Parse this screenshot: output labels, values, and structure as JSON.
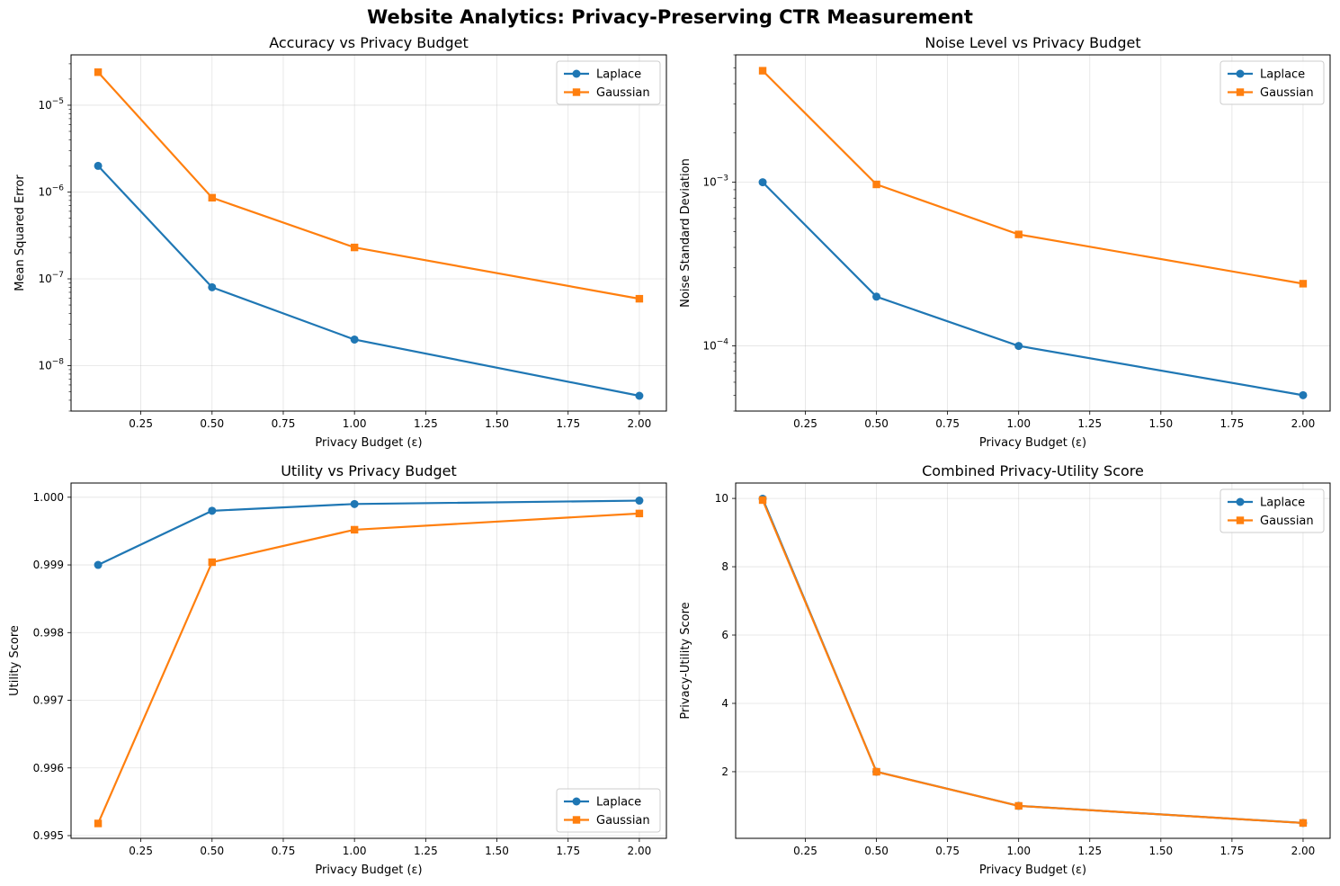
{
  "suptitle": "Website Analytics: Privacy-Preserving CTR Measurement",
  "chart_data": [
    {
      "type": "line",
      "title": "Accuracy vs Privacy Budget",
      "xlabel": "Privacy Budget (ε)",
      "ylabel": "Mean Squared Error",
      "yscale": "log",
      "x": [
        0.1,
        0.5,
        1.0,
        2.0
      ],
      "xlim": [
        0.005,
        2.095
      ],
      "ylim": [
        3e-09,
        3.8e-05
      ],
      "xticks": [
        "0.25",
        "0.50",
        "0.75",
        "1.00",
        "1.25",
        "1.50",
        "1.75",
        "2.00"
      ],
      "yticks": [
        {
          "base": "10",
          "exp": "−8",
          "value": 1e-08
        },
        {
          "base": "10",
          "exp": "−7",
          "value": 1e-07
        },
        {
          "base": "10",
          "exp": "−6",
          "value": 1e-06
        },
        {
          "base": "10",
          "exp": "−5",
          "value": 1e-05
        }
      ],
      "grid": true,
      "legend_loc": "upper right",
      "series": [
        {
          "name": "Laplace",
          "color": "#1f77b4",
          "marker": "circle",
          "values": [
            2e-06,
            8e-08,
            2e-08,
            4.5e-09
          ]
        },
        {
          "name": "Gaussian",
          "color": "#ff7f0e",
          "marker": "square",
          "values": [
            2.4e-05,
            8.6e-07,
            2.3e-07,
            5.9e-08
          ]
        }
      ]
    },
    {
      "type": "line",
      "title": "Noise Level vs Privacy Budget",
      "xlabel": "Privacy Budget (ε)",
      "ylabel": "Noise Standard Deviation",
      "yscale": "log",
      "x": [
        0.1,
        0.5,
        1.0,
        2.0
      ],
      "xlim": [
        0.005,
        2.095
      ],
      "ylim": [
        4e-05,
        0.006
      ],
      "xticks": [
        "0.25",
        "0.50",
        "0.75",
        "1.00",
        "1.25",
        "1.50",
        "1.75",
        "2.00"
      ],
      "yticks": [
        {
          "base": "10",
          "exp": "−4",
          "value": 0.0001
        },
        {
          "base": "10",
          "exp": "−3",
          "value": 0.001
        }
      ],
      "grid": true,
      "legend_loc": "upper right",
      "series": [
        {
          "name": "Laplace",
          "color": "#1f77b4",
          "marker": "circle",
          "values": [
            0.001,
            0.0002,
            0.0001,
            5e-05
          ]
        },
        {
          "name": "Gaussian",
          "color": "#ff7f0e",
          "marker": "square",
          "values": [
            0.0048,
            0.00097,
            0.00048,
            0.00024
          ]
        }
      ]
    },
    {
      "type": "line",
      "title": "Utility vs Privacy Budget",
      "xlabel": "Privacy Budget (ε)",
      "ylabel": "Utility Score",
      "yscale": "linear",
      "x": [
        0.1,
        0.5,
        1.0,
        2.0
      ],
      "xlim": [
        0.005,
        2.095
      ],
      "ylim": [
        0.99496,
        1.00021
      ],
      "xticks": [
        "0.25",
        "0.50",
        "0.75",
        "1.00",
        "1.25",
        "1.50",
        "1.75",
        "2.00"
      ],
      "yticks": [
        "0.995",
        "0.996",
        "0.997",
        "0.998",
        "0.999",
        "1.000"
      ],
      "grid": true,
      "legend_loc": "lower right",
      "series": [
        {
          "name": "Laplace",
          "color": "#1f77b4",
          "marker": "circle",
          "values": [
            0.999,
            0.9998,
            0.9999,
            0.99995
          ]
        },
        {
          "name": "Gaussian",
          "color": "#ff7f0e",
          "marker": "square",
          "values": [
            0.99518,
            0.99904,
            0.99952,
            0.99976
          ]
        }
      ]
    },
    {
      "type": "line",
      "title": "Combined Privacy-Utility Score",
      "xlabel": "Privacy Budget (ε)",
      "ylabel": "Privacy-Utility Score",
      "yscale": "linear",
      "x": [
        0.1,
        0.5,
        1.0,
        2.0
      ],
      "xlim": [
        0.005,
        2.095
      ],
      "ylim": [
        0.05,
        10.45
      ],
      "xticks": [
        "0.25",
        "0.50",
        "0.75",
        "1.00",
        "1.25",
        "1.50",
        "1.75",
        "2.00"
      ],
      "yticks": [
        "2",
        "4",
        "6",
        "8",
        "10"
      ],
      "grid": true,
      "legend_loc": "upper right",
      "series": [
        {
          "name": "Laplace",
          "color": "#1f77b4",
          "marker": "circle",
          "values": [
            9.99,
            2.0,
            1.0,
            0.5
          ]
        },
        {
          "name": "Gaussian",
          "color": "#ff7f0e",
          "marker": "square",
          "values": [
            9.95,
            1.998,
            0.9995,
            0.4999
          ]
        }
      ]
    }
  ]
}
